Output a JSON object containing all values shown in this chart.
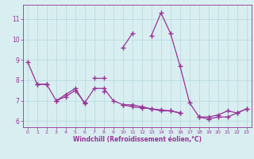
{
  "x": [
    0,
    1,
    2,
    3,
    4,
    5,
    6,
    7,
    8,
    9,
    10,
    11,
    12,
    13,
    14,
    15,
    16,
    17,
    18,
    19,
    20,
    21,
    22,
    23
  ],
  "line1": [
    8.9,
    7.8,
    7.8,
    null,
    null,
    null,
    null,
    8.1,
    8.1,
    null,
    9.6,
    10.3,
    null,
    10.2,
    11.3,
    10.3,
    8.7,
    6.9,
    6.2,
    6.2,
    6.3,
    6.5,
    6.4,
    6.6
  ],
  "line2": [
    null,
    7.8,
    7.8,
    7.0,
    7.2,
    7.5,
    6.9,
    7.6,
    7.6,
    7.0,
    6.8,
    6.8,
    6.7,
    6.6,
    6.5,
    6.5,
    6.4,
    null,
    6.2,
    6.1,
    6.2,
    6.2,
    6.4,
    6.6
  ],
  "line3": [
    null,
    null,
    null,
    7.0,
    7.3,
    7.6,
    6.85,
    null,
    7.45,
    null,
    6.8,
    6.7,
    6.65,
    6.6,
    6.55,
    6.5,
    6.4,
    null,
    null,
    null,
    null,
    null,
    null,
    null
  ],
  "line_color": "#993399",
  "background_color": "#d8eef0",
  "grid_color": "#b8d8e0",
  "xlabel": "Windchill (Refroidissement éolien,°C)",
  "xlabel_color": "#993399",
  "tick_color": "#993399",
  "ylim": [
    5.7,
    11.7
  ],
  "xlim": [
    -0.5,
    23.5
  ],
  "yticks": [
    6,
    7,
    8,
    9,
    10,
    11
  ],
  "xticks": [
    0,
    1,
    2,
    3,
    4,
    5,
    6,
    7,
    8,
    9,
    10,
    11,
    12,
    13,
    14,
    15,
    16,
    17,
    18,
    19,
    20,
    21,
    22,
    23
  ]
}
